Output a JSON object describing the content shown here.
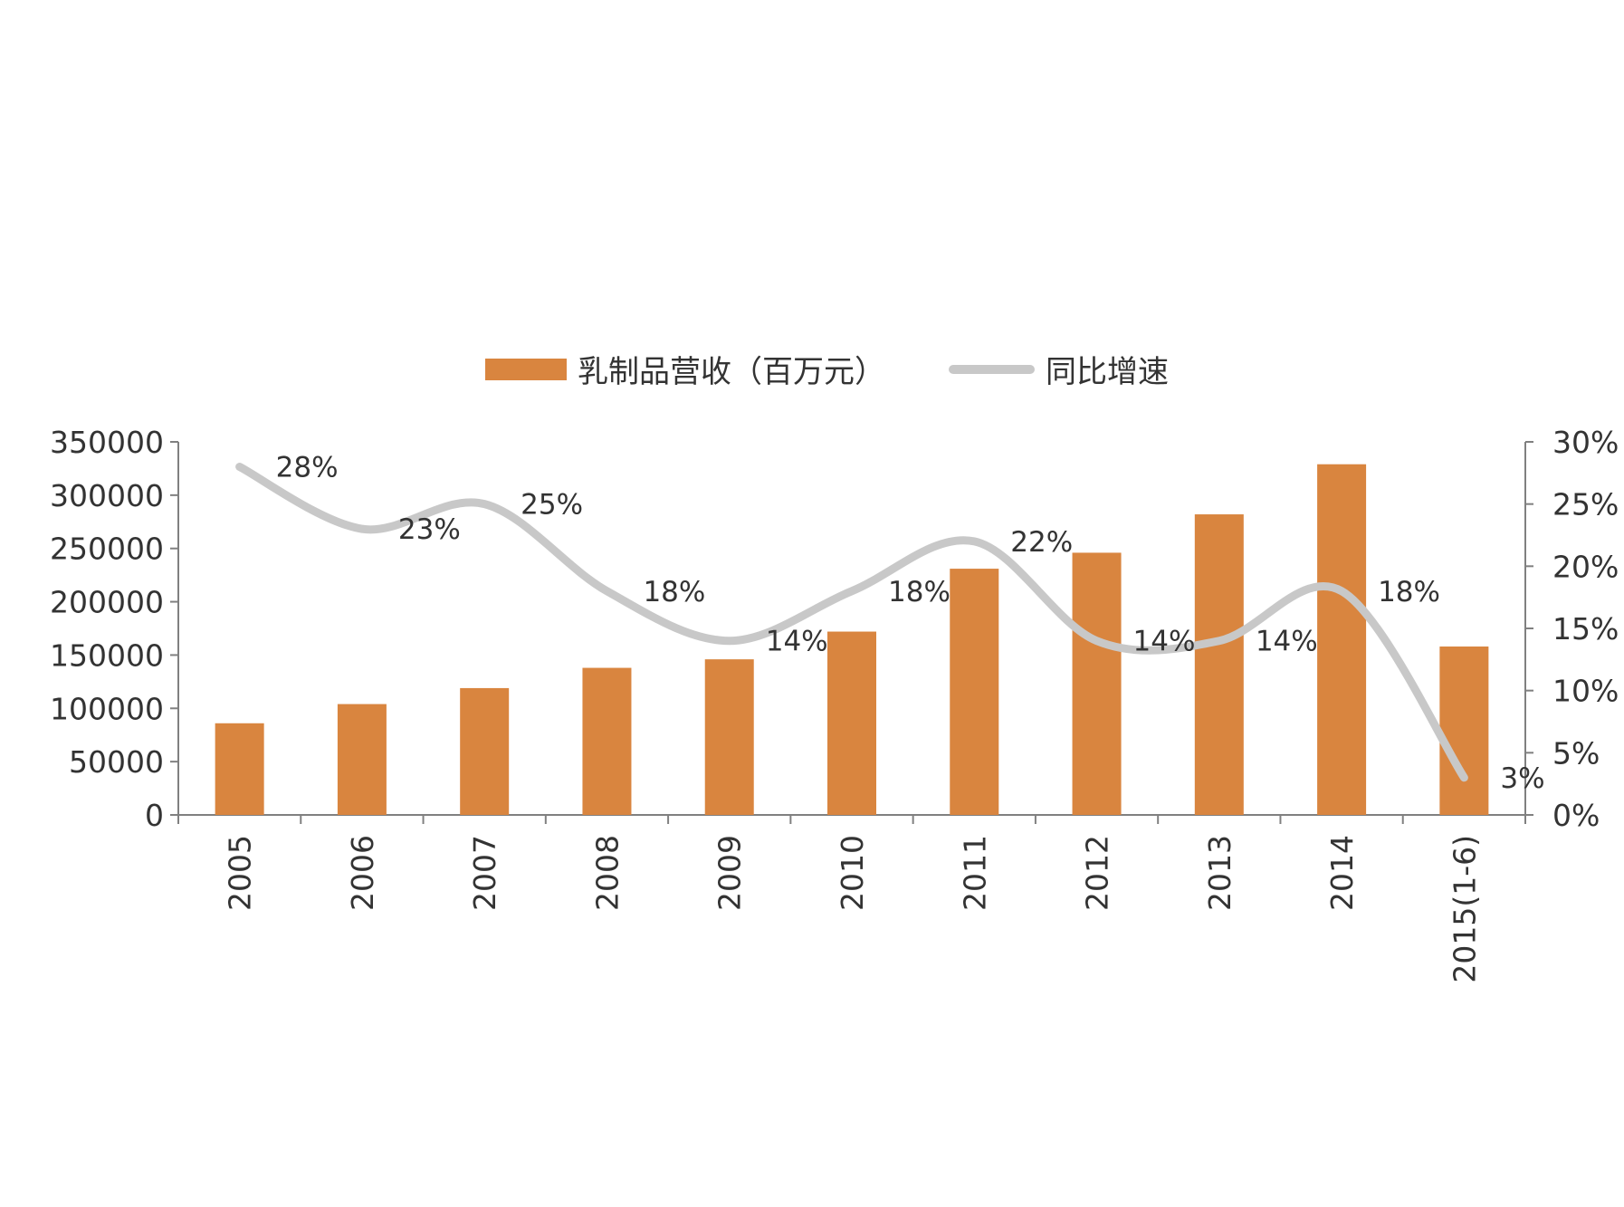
{
  "chart_data": {
    "type": "bar",
    "categories": [
      "2005",
      "2006",
      "2007",
      "2008",
      "2009",
      "2010",
      "2011",
      "2012",
      "2013",
      "2014",
      "2015(1-6)"
    ],
    "series": [
      {
        "name": "乳制品营收（百万元）",
        "type": "bar",
        "axis": "left",
        "values": [
          86000,
          104000,
          119000,
          138000,
          146000,
          172000,
          231000,
          246000,
          282000,
          329000,
          158000
        ]
      },
      {
        "name": "同比增速",
        "type": "line",
        "axis": "right",
        "values": [
          28,
          23,
          25,
          18,
          14,
          18,
          22,
          14,
          14,
          18,
          3
        ],
        "labels": [
          "28%",
          "23%",
          "25%",
          "18%",
          "14%",
          "18%",
          "22%",
          "14%",
          "14%",
          "18%",
          "3%"
        ]
      }
    ],
    "y_left": {
      "min": 0,
      "max": 350000,
      "ticks": [
        "0",
        "50000",
        "100000",
        "150000",
        "200000",
        "250000",
        "300000",
        "350000"
      ]
    },
    "y_right": {
      "min": 0,
      "max": 30,
      "ticks": [
        "0%",
        "5%",
        "10%",
        "15%",
        "20%",
        "25%",
        "30%"
      ]
    },
    "legend_position": "top",
    "grid": false,
    "colors": {
      "bar": "#D9853F",
      "line": "#C8C8C8",
      "axis": "#808080"
    }
  },
  "legend": {
    "bar_label": "乳制品营收（百万元）",
    "line_label": "同比增速"
  }
}
